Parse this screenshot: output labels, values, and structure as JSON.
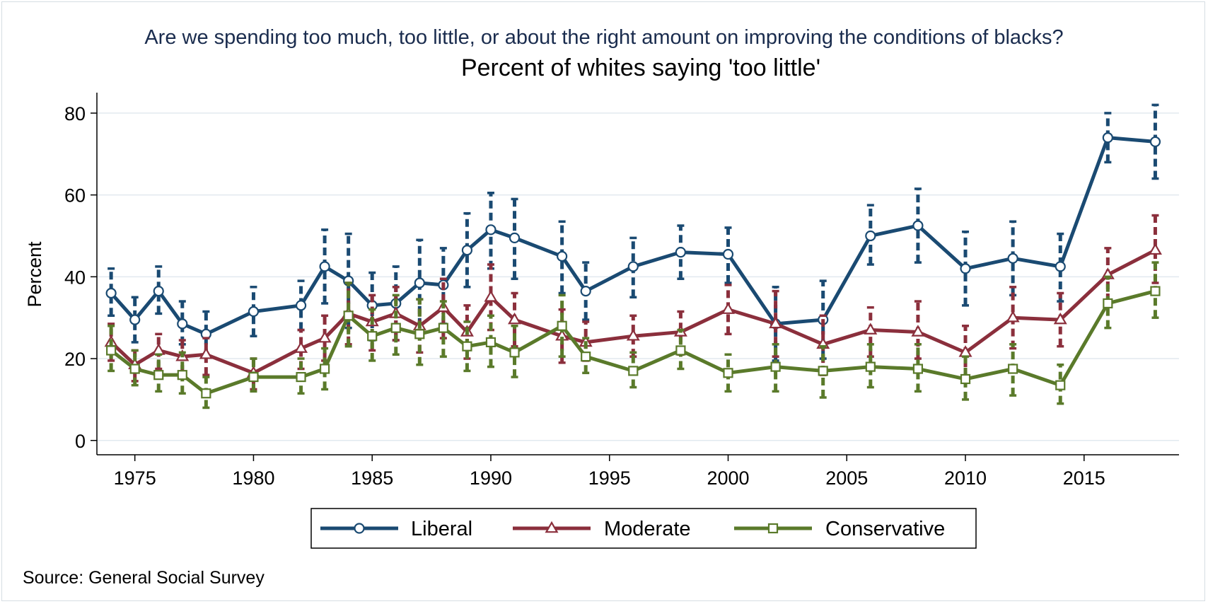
{
  "chart_data": {
    "type": "line",
    "title": "Are we spending too much, too little, or about the right amount on improving the conditions of blacks?",
    "subtitle": "Percent of whites saying 'too little'",
    "ylabel": "Percent",
    "xlabel": "",
    "note": "Source: General Social Survey",
    "xlim": [
      1973.4,
      2019.0
    ],
    "ylim": [
      -3.5,
      85
    ],
    "yticks": [
      0,
      20,
      40,
      60,
      80
    ],
    "xticks": [
      1975,
      1980,
      1985,
      1990,
      1995,
      2000,
      2005,
      2010,
      2015
    ],
    "grid": true,
    "legend_position": "bottom",
    "x": [
      1974,
      1975,
      1976,
      1977,
      1978,
      1980,
      1982,
      1983,
      1984,
      1985,
      1986,
      1987,
      1988,
      1989,
      1990,
      1991,
      1993,
      1994,
      1996,
      1998,
      2000,
      2002,
      2004,
      2006,
      2008,
      2010,
      2012,
      2014,
      2016,
      2018
    ],
    "series": [
      {
        "name": "Liberal",
        "color": "#1a4a72",
        "marker": "circle",
        "values": [
          36,
          29.5,
          36.5,
          28.5,
          26,
          31.5,
          33,
          42.5,
          39,
          33,
          33.5,
          38.5,
          38,
          46.5,
          51.5,
          49.5,
          45,
          36.5,
          42.5,
          46,
          45.5,
          28.5,
          29.5,
          50,
          52.5,
          42,
          44.5,
          42.5,
          74,
          73
        ],
        "ci_lower": [
          30.5,
          24,
          31,
          23.5,
          20.5,
          25.5,
          27,
          33.5,
          27.5,
          24.5,
          24.5,
          28,
          28.5,
          37.5,
          42,
          39.5,
          36,
          29.5,
          35,
          39.5,
          38.5,
          19.5,
          20,
          43,
          43.5,
          33,
          35.5,
          34,
          68,
          64
        ],
        "ci_upper": [
          42,
          35,
          42.5,
          34,
          31.5,
          37.5,
          39,
          51.5,
          50.5,
          41,
          42.5,
          49,
          47,
          55.5,
          60.5,
          59,
          53.5,
          43.5,
          49.5,
          52.5,
          52,
          37.5,
          39,
          57.5,
          61.5,
          51,
          53.5,
          50.5,
          80,
          82
        ]
      },
      {
        "name": "Moderate",
        "color": "#8b2f3c",
        "marker": "triangle",
        "values": [
          24,
          18.5,
          22,
          20.5,
          21,
          16.5,
          22.5,
          25,
          31,
          29,
          31,
          28,
          32.5,
          26.5,
          35,
          29.5,
          25.5,
          24,
          25.5,
          26.5,
          32,
          28.5,
          23.5,
          27,
          26.5,
          21.5,
          30,
          29.5,
          40.5,
          46.5
        ],
        "ci_lower": [
          19.5,
          14.5,
          17.5,
          16.5,
          16,
          12.5,
          17.5,
          19.5,
          23.5,
          22,
          24.5,
          21.5,
          25,
          20,
          27,
          23,
          19,
          19.5,
          20.5,
          21,
          26,
          20.5,
          16,
          20.5,
          20,
          15,
          22.5,
          23,
          34,
          38.5
        ],
        "ci_upper": [
          28.5,
          22,
          26,
          24.5,
          25,
          20,
          27,
          30.5,
          38.5,
          35.5,
          37.5,
          34.5,
          39.5,
          33,
          43,
          36,
          32,
          29,
          30.5,
          31.5,
          38,
          36.5,
          30.5,
          32.5,
          34,
          28,
          37.5,
          36,
          47,
          55
        ]
      },
      {
        "name": "Conservative",
        "color": "#5a7a2a",
        "marker": "square",
        "values": [
          22,
          17.5,
          16,
          16,
          11.5,
          15.5,
          15.5,
          17.5,
          30.5,
          25.5,
          27.5,
          26,
          27.5,
          23,
          24,
          21.5,
          28,
          20.5,
          17,
          22,
          16.5,
          18,
          17,
          18,
          17.5,
          15,
          17.5,
          13.5,
          33.5,
          36.5
        ],
        "ci_lower": [
          17,
          13.5,
          12,
          11.5,
          8,
          12,
          11.5,
          12.5,
          23,
          19.5,
          21,
          18.5,
          20.5,
          17,
          18,
          15.5,
          20.5,
          16.5,
          13,
          17.5,
          12,
          12,
          10.5,
          13,
          12,
          10,
          11,
          9,
          27.5,
          30
        ],
        "ci_upper": [
          28,
          22,
          21,
          21.5,
          15.5,
          20,
          20,
          22.5,
          38.5,
          32,
          35.5,
          34.5,
          34,
          29,
          30.5,
          28,
          35.5,
          25,
          21.5,
          27,
          21,
          23.5,
          23,
          23.5,
          23.5,
          20.5,
          23.5,
          18.5,
          40,
          43.5
        ]
      }
    ]
  }
}
